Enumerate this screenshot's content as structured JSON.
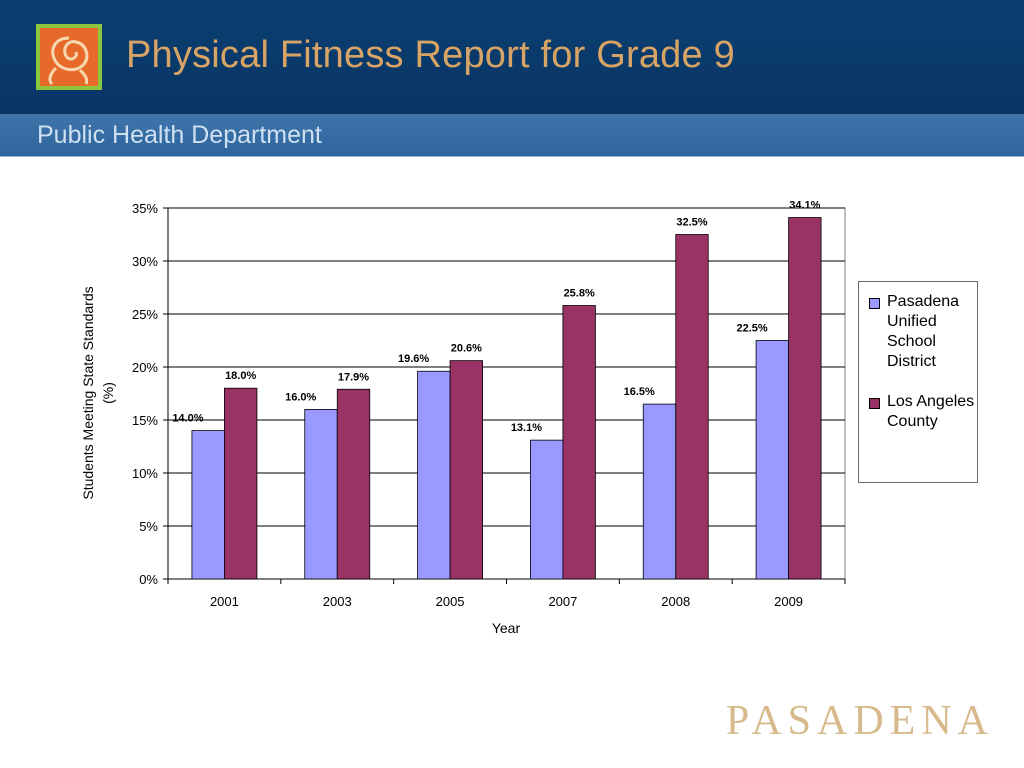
{
  "header": {
    "title": "Physical Fitness Report for Grade 9",
    "subtitle": "Public Health Department",
    "brand_text": "PASADENA"
  },
  "colors": {
    "header_bg": "#0a3a6a",
    "title": "#d8a466",
    "subbar_bg": "#3670a5",
    "series_pusd": "#9999ff",
    "series_la": "#993366",
    "brand": "#d7ba8c"
  },
  "chart_data": {
    "type": "bar",
    "title": "",
    "xlabel": "Year",
    "ylabel": "Students Meeting State Standards (%)",
    "categories": [
      "2001",
      "2003",
      "2005",
      "2007",
      "2008",
      "2009"
    ],
    "ylim": [
      0,
      35
    ],
    "yticks": [
      "0%",
      "5%",
      "10%",
      "15%",
      "20%",
      "25%",
      "30%",
      "35%"
    ],
    "grid": true,
    "legend_position": "right",
    "series": [
      {
        "name": "Pasadena Unified School District",
        "color": "#9999ff",
        "values": [
          14.0,
          16.0,
          19.6,
          13.1,
          16.5,
          22.5
        ],
        "labels": [
          "14.0%",
          "16.0%",
          "19.6%",
          "13.1%",
          "16.5%",
          "22.5%"
        ]
      },
      {
        "name": "Los Angeles County",
        "color": "#993366",
        "values": [
          18.0,
          17.9,
          20.6,
          25.8,
          32.5,
          34.1
        ],
        "labels": [
          "18.0%",
          "17.9%",
          "20.6%",
          "25.8%",
          "32.5%",
          "34.1%"
        ]
      }
    ]
  }
}
